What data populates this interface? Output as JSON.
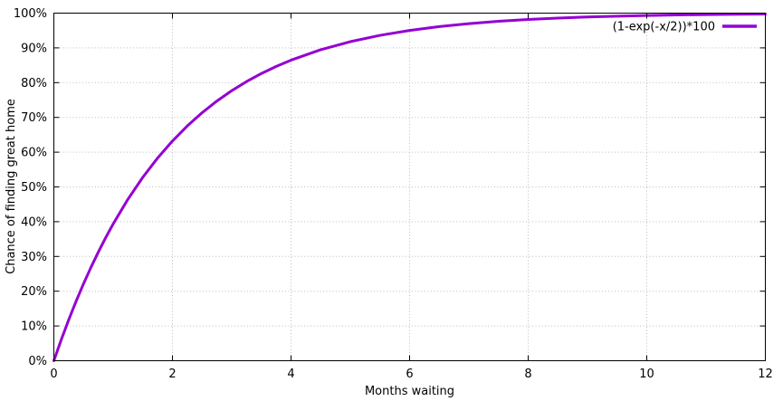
{
  "chart_data": {
    "type": "line",
    "title": "",
    "xlabel": "Months waiting",
    "ylabel": "Chance of finding great home",
    "xlim": [
      0,
      12
    ],
    "ylim": [
      0,
      100
    ],
    "x_ticks": [
      0,
      2,
      4,
      6,
      8,
      10,
      12
    ],
    "x_tick_labels": [
      "0",
      "2",
      "4",
      "6",
      "8",
      "10",
      "12"
    ],
    "y_ticks": [
      0,
      10,
      20,
      30,
      40,
      50,
      60,
      70,
      80,
      90,
      100
    ],
    "y_tick_labels": [
      "0%",
      "10%",
      "20%",
      "30%",
      "40%",
      "50%",
      "60%",
      "70%",
      "80%",
      "90%",
      "100%"
    ],
    "grid": true,
    "grid_style": "dotted",
    "legend_position": "top-right-inside",
    "line_color": "#9400d3",
    "grid_color": "#bdbdbd",
    "axis_color": "#000000",
    "background_color": "#ffffff",
    "series": [
      {
        "name": "(1-exp(-x/2))*100",
        "formula": "(1-exp(-x/2))*100",
        "color": "#9400d3",
        "x": [
          0,
          0.125,
          0.25,
          0.375,
          0.5,
          0.625,
          0.75,
          0.875,
          1,
          1.25,
          1.5,
          1.75,
          2,
          2.25,
          2.5,
          2.75,
          3,
          3.25,
          3.5,
          3.75,
          4,
          4.5,
          5,
          5.5,
          6,
          6.5,
          7,
          7.5,
          8,
          8.5,
          9,
          9.5,
          10,
          10.5,
          11,
          11.5,
          12
        ],
        "y": [
          0,
          6.059,
          11.75,
          17.097,
          22.12,
          26.839,
          31.271,
          35.437,
          39.347,
          46.474,
          52.763,
          58.314,
          63.212,
          67.535,
          71.35,
          74.716,
          77.687,
          80.309,
          82.623,
          84.665,
          86.466,
          89.46,
          91.792,
          93.607,
          95.021,
          96.123,
          96.98,
          97.648,
          98.168,
          98.574,
          98.889,
          99.135,
          99.326,
          99.475,
          99.591,
          99.682,
          99.752
        ]
      }
    ]
  }
}
